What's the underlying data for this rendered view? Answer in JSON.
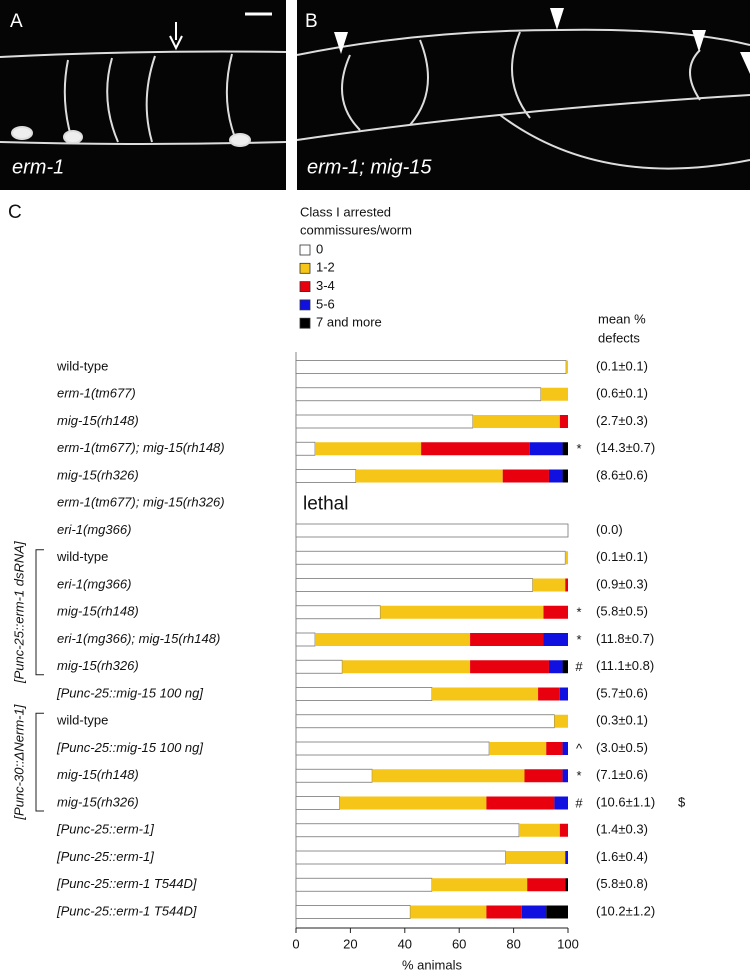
{
  "panels": [
    {
      "letter": "A",
      "label": "erm-1"
    },
    {
      "letter": "B",
      "label": "erm-1; mig-15"
    }
  ],
  "chart_data": {
    "type": "bar",
    "orientation": "horizontal",
    "stacked": true,
    "panel_letter": "C",
    "legend_title": [
      "Class I arrested",
      "commissures/worm"
    ],
    "mean_header": [
      "mean %",
      "defects"
    ],
    "x_label": "% animals",
    "xlim": [
      0,
      100
    ],
    "xticks": [
      0,
      20,
      40,
      60,
      80,
      100
    ],
    "categories": [
      "wild-type",
      "erm-1(tm677)",
      "mig-15(rh148)",
      "erm-1(tm677); mig-15(rh148)",
      "mig-15(rh326)",
      "erm-1(tm677); mig-15(rh326)",
      "eri-1(mg366)",
      "wild-type",
      "eri-1(mg366)",
      "mig-15(rh148)",
      "eri-1(mg366); mig-15(rh148)",
      "mig-15(rh326)",
      "[Punc-25::mig-15 100 ng]",
      "wild-type",
      "[Punc-25::mig-15 100 ng]",
      "mig-15(rh148)",
      "mig-15(rh326)",
      "[Punc-25::erm-1]",
      "[Punc-25::erm-1]",
      "[Punc-25::erm-1 T544D]",
      "[Punc-25::erm-1 T544D]"
    ],
    "series": [
      {
        "name": "0",
        "color": "#ffffff",
        "values": [
          99.3,
          90,
          65,
          7,
          22,
          null,
          100,
          99,
          87,
          31,
          7,
          17,
          50,
          95,
          71,
          28,
          16,
          82,
          77,
          50,
          42
        ]
      },
      {
        "name": "1-2",
        "color": "#f5c518",
        "values": [
          0.7,
          10,
          32,
          39,
          54,
          null,
          0,
          1,
          12,
          60,
          57,
          47,
          39,
          5,
          21,
          56,
          54,
          15,
          22,
          35,
          28
        ]
      },
      {
        "name": "3-4",
        "color": "#e8000f",
        "values": [
          0,
          0,
          3,
          40,
          17,
          null,
          0,
          0,
          1,
          9,
          27,
          29,
          8,
          0,
          6,
          14,
          25,
          3,
          0,
          14,
          13
        ]
      },
      {
        "name": "5-6",
        "color": "#1010e0",
        "values": [
          0,
          0,
          0,
          12,
          5,
          null,
          0,
          0,
          0,
          0,
          9,
          5,
          3,
          0,
          2,
          2,
          5,
          0,
          1,
          0,
          9
        ]
      },
      {
        "name": "7 and more",
        "color": "#000000",
        "values": [
          0,
          0,
          0,
          2,
          2,
          null,
          0,
          0,
          0,
          0,
          0,
          2,
          0,
          0,
          0,
          0,
          0,
          0,
          0,
          1,
          8
        ]
      }
    ],
    "notes": [
      null,
      null,
      null,
      null,
      null,
      "lethal",
      null,
      null,
      null,
      null,
      null,
      null,
      null,
      null,
      null,
      null,
      null,
      null,
      null,
      null,
      null
    ],
    "markers": [
      null,
      null,
      null,
      "*",
      null,
      null,
      null,
      null,
      null,
      "*",
      "*",
      "#",
      null,
      null,
      "^",
      "*",
      "#",
      null,
      null,
      null,
      null
    ],
    "mean_defects": [
      "(0.1±0.1)",
      "(0.6±0.1)",
      "(2.7±0.3)",
      "(14.3±0.7)",
      "(8.6±0.6)",
      null,
      "(0.0)",
      "(0.1±0.1)",
      "(0.9±0.3)",
      "(5.8±0.5)",
      "(11.8±0.7)",
      "(11.1±0.8)",
      "(5.7±0.6)",
      "(0.3±0.1)",
      "(3.0±0.5)",
      "(7.1±0.6)",
      "(10.6±1.1)",
      "(1.4±0.3)",
      "(1.6±0.4)",
      "(5.8±0.8)",
      "(10.2±1.2)"
    ],
    "extra_markers": [
      null,
      null,
      null,
      null,
      null,
      null,
      null,
      null,
      null,
      null,
      null,
      null,
      null,
      null,
      null,
      null,
      "$",
      null,
      null,
      null,
      null
    ],
    "groups": [
      {
        "label": "[Punc-25::erm-1 dsRNA]"
      },
      {
        "label": "[Punc-30::ΔNerm-1]"
      }
    ]
  }
}
